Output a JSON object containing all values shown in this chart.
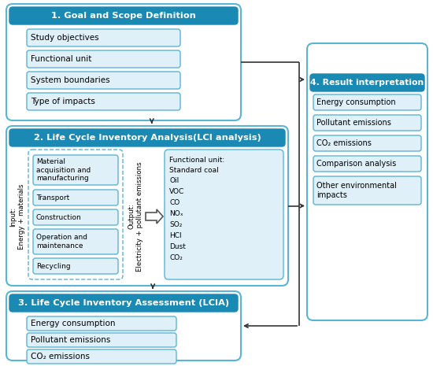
{
  "bg_color": "#ffffff",
  "header_fill": "#1a8ab5",
  "header_text_color": "#ffffff",
  "box_fill": "#dff0f8",
  "box_edge_color": "#5ab4d6",
  "outer_box_edge": "#5ab4d6",
  "arrow_color": "#333333",
  "text_color": "#000000",
  "sec1_title": "1. Goal and Scope Definition",
  "sec1_items": [
    "Study objectives",
    "Functional unit",
    "System boundaries",
    "Type of impacts"
  ],
  "sec2_title": "2. Life Cycle Inventory Analysis(LCI analysis)",
  "sec2_input_label": "Input:\nEnergy + materials",
  "sec2_output_label": "Output:\nElectricity + pollutant emissions",
  "sec2_process_items": [
    "Material\nacquisition and\nmanufacturing",
    "Transport",
    "Construction",
    "Operation and\nmaintenance",
    "Recycling"
  ],
  "sec2_output_items": [
    "Functional unit:",
    "Standard coal",
    "Oil",
    "VOC",
    "CO",
    "NOₓ",
    "SO₂",
    "HCl",
    "Dust",
    "CO₂"
  ],
  "sec3_title": "3. Life Cycle Inventory Assessment (LCIA)",
  "sec3_items": [
    "Energy consumption",
    "Pollutant emissions",
    "CO₂ emissions"
  ],
  "sec4_title": "4. Result interpretation",
  "sec4_items": [
    "Energy consumption",
    "Pollutant emissions",
    "CO₂ emissions",
    "Comparison analysis",
    "Other environmental\nimpacts"
  ],
  "sec4_item_heights": [
    20,
    20,
    20,
    20,
    36
  ]
}
